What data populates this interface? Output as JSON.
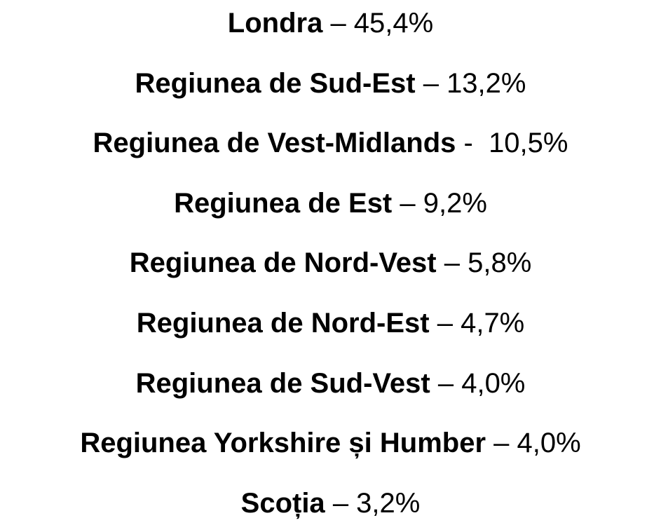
{
  "items": [
    {
      "region": "Londra",
      "value": "– 45,4%"
    },
    {
      "region": "Regiunea de Sud-Est",
      "value": "– 13,2%"
    },
    {
      "region": "Regiunea de Vest-Midlands",
      "value": "-  10,5%"
    },
    {
      "region": "Regiunea de Est",
      "value": "– 9,2%"
    },
    {
      "region": "Regiunea de Nord-Vest",
      "value": "– 5,8%"
    },
    {
      "region": "Regiunea de Nord-Est",
      "value": "– 4,7%"
    },
    {
      "region": "Regiunea de Sud-Vest",
      "value": "– 4,0%"
    },
    {
      "region": "Regiunea Yorkshire și Humber",
      "value": "– 4,0%"
    },
    {
      "region": "Scoția",
      "value": "– 3,2%"
    }
  ]
}
